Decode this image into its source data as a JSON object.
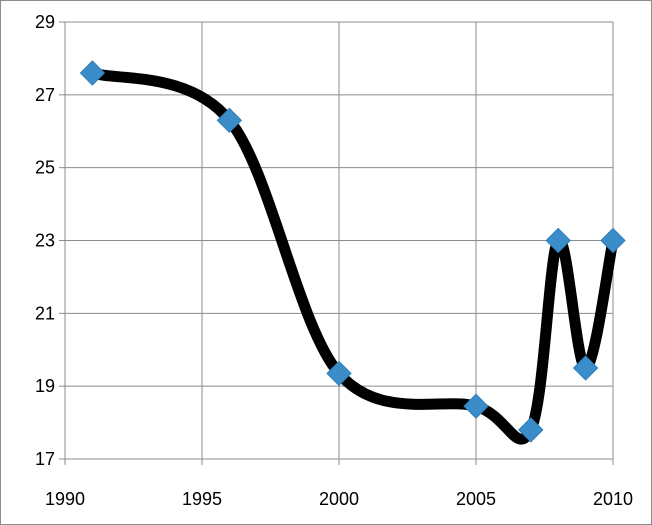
{
  "chart_data": {
    "type": "line",
    "title": "",
    "xlabel": "",
    "ylabel": "",
    "smooth": true,
    "grid": true,
    "legend": "none",
    "xlim": [
      1990,
      2010
    ],
    "ylim": [
      17,
      29
    ],
    "xticks": [
      1990,
      1995,
      2000,
      2005,
      2010
    ],
    "yticks": [
      17,
      19,
      21,
      23,
      25,
      27,
      29
    ],
    "series": [
      {
        "x": [
          1991,
          1996,
          2000,
          2005,
          2007,
          2008,
          2009,
          2010
        ],
        "values": [
          27.6,
          26.3,
          19.35,
          18.45,
          17.8,
          23.0,
          19.5,
          23.0
        ],
        "line_color": "#000000",
        "marker": "diamond",
        "marker_color": "#3a8dc9"
      }
    ]
  }
}
